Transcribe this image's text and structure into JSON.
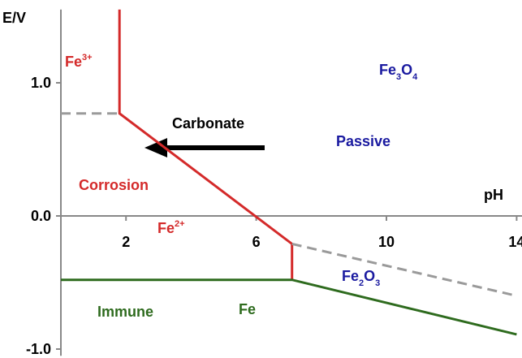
{
  "chart_data": {
    "type": "line",
    "xlabel": "pH",
    "ylabel": "E/V",
    "xlim": [
      0,
      14.2
    ],
    "ylim": [
      -1.05,
      1.55
    ],
    "xticks": [
      2,
      6,
      10,
      14
    ],
    "yticks": [
      {
        "value": -1,
        "label": "-1.0"
      },
      {
        "value": 0,
        "label": "0.0"
      },
      {
        "value": 1,
        "label": "1.0"
      }
    ],
    "series": [
      {
        "color": "#d42a2a",
        "dash": false,
        "x": [
          1.8,
          1.8,
          7.1,
          7.1
        ],
        "values": [
          1.55,
          0.77,
          -0.21,
          -0.48
        ]
      },
      {
        "color": "#2e6b1e",
        "dash": false,
        "x": [
          0,
          7.1,
          14
        ],
        "values": [
          -0.48,
          -0.48,
          -0.89
        ]
      },
      {
        "color": "#9a9a9a",
        "dash": true,
        "x": [
          0,
          1.8
        ],
        "values": [
          0.77,
          0.77
        ]
      },
      {
        "color": "#9a9a9a",
        "dash": true,
        "x": [
          7.1,
          14
        ],
        "values": [
          -0.21,
          -0.6
        ]
      }
    ],
    "annotations": [
      {
        "parts": [
          "Fe",
          "3+"
        ]
      },
      {
        "parts": [
          "Fe",
          "3",
          "O",
          "4"
        ]
      },
      {
        "parts": [
          "Carbonate"
        ]
      },
      {
        "parts": [
          "Passive"
        ]
      },
      {
        "parts": [
          "Corrosion"
        ]
      },
      {
        "parts": [
          "Fe",
          "2+"
        ]
      },
      {
        "parts": [
          "Fe",
          "2",
          "O",
          "3"
        ]
      },
      {
        "parts": [
          "Immune"
        ]
      },
      {
        "parts": [
          "Fe"
        ]
      }
    ]
  }
}
